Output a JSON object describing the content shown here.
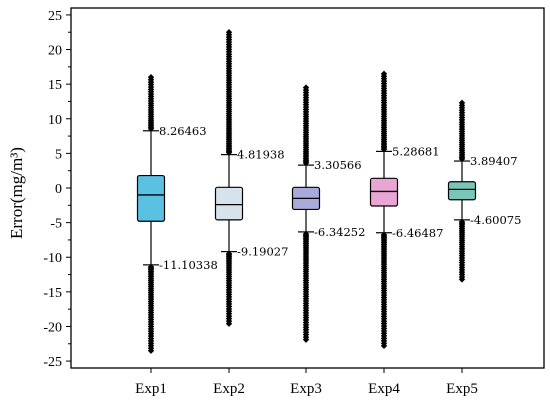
{
  "chart_data": {
    "type": "box",
    "ylabel": "Error(mg/m³)",
    "xlabel": "",
    "ylim": [
      -26,
      26
    ],
    "yticks": [
      -25,
      -20,
      -15,
      -10,
      -5,
      0,
      5,
      10,
      15,
      20,
      25
    ],
    "categories": [
      "Exp1",
      "Exp2",
      "Exp3",
      "Exp4",
      "Exp5"
    ],
    "series": [
      {
        "category": "Exp1",
        "color": "#5BC1E3",
        "q1": -4.8,
        "median": -1.0,
        "q3": 1.8,
        "whisker_high": 8.26463,
        "whisker_low": -11.10338,
        "whisker_high_label": "8.26463",
        "whisker_low_label": "-11.10338",
        "outliers_high_max": 16.0,
        "outliers_low_min": -23.5
      },
      {
        "category": "Exp2",
        "color": "#D6E3EC",
        "q1": -4.6,
        "median": -2.4,
        "q3": 0.1,
        "whisker_high": 4.81938,
        "whisker_low": -9.19027,
        "whisker_high_label": "4.81938",
        "whisker_low_label": "-9.19027",
        "outliers_high_max": 22.5,
        "outliers_low_min": -19.6
      },
      {
        "category": "Exp3",
        "color": "#A9A9DC",
        "q1": -3.1,
        "median": -1.5,
        "q3": 0.1,
        "whisker_high": 3.30566,
        "whisker_low": -6.34252,
        "whisker_high_label": "3.30566",
        "whisker_low_label": "-6.34252",
        "outliers_high_max": 14.5,
        "outliers_low_min": -21.9
      },
      {
        "category": "Exp4",
        "color": "#E9A6D5",
        "q1": -2.6,
        "median": -0.5,
        "q3": 1.4,
        "whisker_high": 5.28681,
        "whisker_low": -6.46487,
        "whisker_high_label": "5.28681",
        "whisker_low_label": "-6.46487",
        "outliers_high_max": 16.5,
        "outliers_low_min": -22.8
      },
      {
        "category": "Exp5",
        "color": "#79C6B8",
        "q1": -1.7,
        "median": -0.2,
        "q3": 0.9,
        "whisker_high": 3.89407,
        "whisker_low": -4.60075,
        "whisker_high_label": "3.89407",
        "whisker_low_label": "-4.60075",
        "outliers_high_max": 12.3,
        "outliers_low_min": -13.2
      }
    ]
  }
}
